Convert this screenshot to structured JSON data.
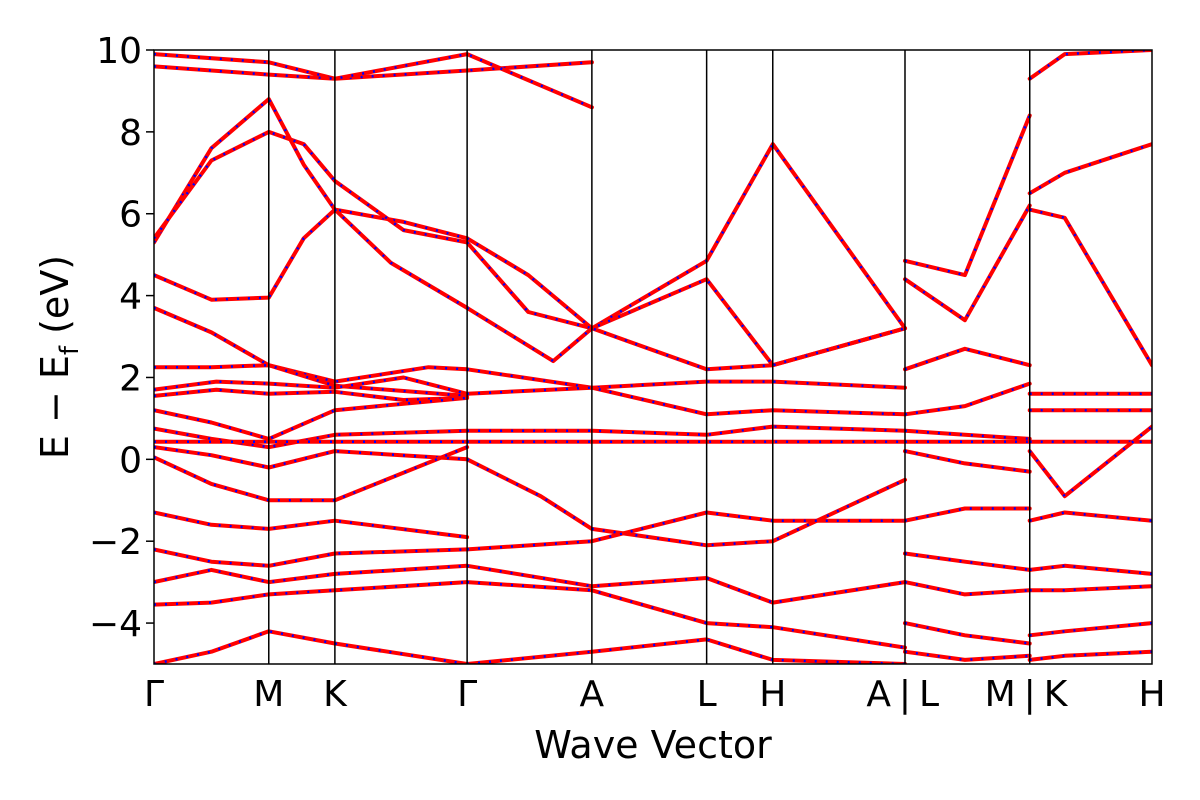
{
  "chart_data": {
    "type": "line",
    "title": "",
    "xlabel": "Wave Vector",
    "ylabel": "E − E",
    "ylabel_subscript": "f",
    "ylabel_unit": " (eV)",
    "ylim": [
      -5,
      10
    ],
    "yticks": [
      10,
      8,
      6,
      4,
      2,
      0,
      -2,
      -4
    ],
    "ytick_labels": [
      "10",
      "8",
      "6",
      "4",
      "2",
      "0",
      "−2",
      "−4"
    ],
    "xlim": [
      0,
      8
    ],
    "kpoints": [
      {
        "label": "Γ",
        "x": 0
      },
      {
        "label": "M",
        "x": 0.92
      },
      {
        "label": "K",
        "x": 1.45
      },
      {
        "label": "Γ",
        "x": 2.51
      },
      {
        "label": "A",
        "x": 3.51
      },
      {
        "label": "L",
        "x": 4.43
      },
      {
        "label": "H",
        "x": 4.96
      },
      {
        "label": "A",
        "x": 6.02
      },
      {
        "label": "L",
        "x": 6.02
      },
      {
        "label": "M",
        "x": 7.02
      },
      {
        "label": "K",
        "x": 7.02
      },
      {
        "label": "H",
        "x": 8.0
      }
    ],
    "xtick_labels": [
      "Γ",
      "M",
      "K",
      "Γ",
      "A",
      "L",
      "H",
      "A",
      "|",
      "L",
      "M",
      "|",
      "K",
      "H"
    ],
    "series_colors": {
      "spin_up": "#0000ff",
      "spin_down": "#ff0000"
    },
    "grid": false,
    "legend": "none",
    "bands": [
      {
        "x": [
          0,
          0.46,
          0.92,
          1.2,
          1.45,
          2.0,
          2.51
        ],
        "y": [
          5.3,
          7.6,
          8.8,
          7.2,
          6.1,
          5.8,
          5.4
        ]
      },
      {
        "x": [
          0,
          0.46,
          0.92,
          1.2,
          1.45,
          2.0,
          2.51
        ],
        "y": [
          5.4,
          7.3,
          8.0,
          7.7,
          6.8,
          5.6,
          5.3
        ]
      },
      {
        "x": [
          0,
          0.46,
          0.92,
          1.2,
          1.45,
          1.9,
          2.51
        ],
        "y": [
          4.5,
          3.9,
          3.95,
          5.4,
          6.1,
          4.8,
          3.7
        ]
      },
      {
        "x": [
          0,
          0.46,
          0.92,
          1.45,
          2.2,
          2.51
        ],
        "y": [
          3.7,
          3.1,
          2.3,
          1.9,
          2.25,
          2.2
        ]
      },
      {
        "x": [
          0,
          0.46,
          0.92,
          1.45,
          2.51
        ],
        "y": [
          2.25,
          2.25,
          2.3,
          1.8,
          1.55
        ]
      },
      {
        "x": [
          0,
          0.5,
          0.92,
          1.45,
          2.0,
          2.51
        ],
        "y": [
          1.7,
          1.9,
          1.85,
          1.75,
          2.0,
          1.6
        ]
      },
      {
        "x": [
          0,
          0.5,
          0.92,
          1.45,
          2.0,
          2.51
        ],
        "y": [
          1.55,
          1.7,
          1.6,
          1.65,
          1.45,
          1.5
        ]
      },
      {
        "x": [
          0,
          0.46,
          0.92,
          1.45,
          2.51
        ],
        "y": [
          1.2,
          0.9,
          0.5,
          1.2,
          1.5
        ]
      },
      {
        "x": [
          0,
          0.46,
          0.92,
          1.45,
          2.51
        ],
        "y": [
          0.75,
          0.5,
          0.3,
          0.6,
          0.7
        ]
      },
      {
        "x": [
          0,
          0.92,
          1.45,
          2.51
        ],
        "y": [
          0.43,
          0.43,
          0.43,
          0.43
        ]
      },
      {
        "x": [
          0,
          0.46,
          0.92,
          1.45,
          2.51
        ],
        "y": [
          0.3,
          0.1,
          -0.2,
          0.2,
          0.0
        ]
      },
      {
        "x": [
          0,
          0.46,
          0.92,
          1.45,
          2.51
        ],
        "y": [
          0.05,
          -0.6,
          -1.0,
          -1.0,
          0.3
        ]
      },
      {
        "x": [
          0,
          0.46,
          0.92,
          1.45,
          2.51
        ],
        "y": [
          -1.3,
          -1.6,
          -1.7,
          -1.5,
          -1.9
        ]
      },
      {
        "x": [
          0,
          0.46,
          0.92,
          1.45,
          2.51
        ],
        "y": [
          -2.2,
          -2.5,
          -2.6,
          -2.3,
          -2.2
        ]
      },
      {
        "x": [
          0,
          0.46,
          0.92,
          1.45,
          2.51
        ],
        "y": [
          -3.0,
          -2.7,
          -3.0,
          -2.8,
          -2.6
        ]
      },
      {
        "x": [
          0,
          0.46,
          0.92,
          1.45,
          2.51
        ],
        "y": [
          -3.55,
          -3.5,
          -3.3,
          -3.2,
          -3.0
        ]
      },
      {
        "x": [
          0,
          0.46,
          0.92,
          1.45,
          2.51
        ],
        "y": [
          -5.0,
          -4.7,
          -4.2,
          -4.5,
          -5.0
        ]
      },
      {
        "x": [
          2.51,
          3.0,
          3.51,
          4.43,
          4.96,
          6.02
        ],
        "y": [
          5.4,
          4.5,
          3.2,
          4.85,
          7.7,
          3.2
        ]
      },
      {
        "x": [
          2.51,
          3.0,
          3.51,
          4.43,
          4.96,
          6.02
        ],
        "y": [
          5.3,
          3.6,
          3.2,
          4.4,
          2.3,
          3.2
        ]
      },
      {
        "x": [
          2.51,
          3.2,
          3.51,
          4.43,
          4.96,
          6.02
        ],
        "y": [
          3.7,
          2.4,
          3.2,
          2.2,
          2.3,
          3.2
        ]
      },
      {
        "x": [
          2.51,
          3.51,
          4.43,
          4.96,
          6.02
        ],
        "y": [
          2.2,
          1.75,
          1.9,
          1.9,
          1.75
        ]
      },
      {
        "x": [
          2.51,
          3.51,
          4.43,
          4.96,
          6.02
        ],
        "y": [
          1.6,
          1.75,
          1.1,
          1.2,
          1.1
        ]
      },
      {
        "x": [
          2.51,
          3.51,
          4.43,
          4.96,
          6.02
        ],
        "y": [
          0.43,
          0.43,
          0.43,
          0.43,
          0.43
        ]
      },
      {
        "x": [
          2.51,
          3.51,
          4.43,
          4.96,
          6.02
        ],
        "y": [
          0.7,
          0.7,
          0.6,
          0.8,
          0.7
        ]
      },
      {
        "x": [
          2.51,
          3.1,
          3.51,
          4.43,
          4.96,
          6.02
        ],
        "y": [
          0.0,
          -0.9,
          -1.7,
          -2.1,
          -2.0,
          -0.5
        ]
      },
      {
        "x": [
          2.51,
          3.51,
          4.43,
          4.96,
          6.02
        ],
        "y": [
          -2.2,
          -2.0,
          -1.3,
          -1.5,
          -1.5
        ]
      },
      {
        "x": [
          2.51,
          3.51,
          4.43,
          4.96,
          6.02
        ],
        "y": [
          -2.6,
          -3.1,
          -2.9,
          -3.5,
          -3.0
        ]
      },
      {
        "x": [
          2.51,
          3.51,
          4.43,
          4.96,
          6.02
        ],
        "y": [
          -3.0,
          -3.2,
          -4.0,
          -4.1,
          -4.6
        ]
      },
      {
        "x": [
          2.51,
          3.51,
          4.43,
          4.96,
          6.02
        ],
        "y": [
          -5.0,
          -4.7,
          -4.4,
          -4.9,
          -5.0
        ]
      },
      {
        "x": [
          6.02,
          6.5,
          7.02
        ],
        "y": [
          4.85,
          4.5,
          8.4
        ]
      },
      {
        "x": [
          6.02,
          6.5,
          7.02
        ],
        "y": [
          4.4,
          3.4,
          6.2
        ]
      },
      {
        "x": [
          6.02,
          6.5,
          7.02
        ],
        "y": [
          2.2,
          2.7,
          2.3
        ]
      },
      {
        "x": [
          6.02,
          6.5,
          7.02
        ],
        "y": [
          1.1,
          1.3,
          1.85
        ]
      },
      {
        "x": [
          6.02,
          6.5,
          7.02
        ],
        "y": [
          0.7,
          0.6,
          0.5
        ]
      },
      {
        "x": [
          6.02,
          6.5,
          7.02
        ],
        "y": [
          0.43,
          0.43,
          0.43
        ]
      },
      {
        "x": [
          6.02,
          6.5,
          7.02
        ],
        "y": [
          0.2,
          -0.1,
          -0.3
        ]
      },
      {
        "x": [
          6.02,
          6.5,
          7.02
        ],
        "y": [
          -1.5,
          -1.2,
          -1.2
        ]
      },
      {
        "x": [
          6.02,
          6.5,
          7.02
        ],
        "y": [
          -2.3,
          -2.5,
          -2.7
        ]
      },
      {
        "x": [
          6.02,
          6.5,
          7.02
        ],
        "y": [
          -3.0,
          -3.3,
          -3.2
        ]
      },
      {
        "x": [
          6.02,
          6.5,
          7.02
        ],
        "y": [
          -4.0,
          -4.3,
          -4.5
        ]
      },
      {
        "x": [
          6.02,
          6.5,
          7.02
        ],
        "y": [
          -4.7,
          -4.9,
          -4.8
        ]
      },
      {
        "x": [
          7.02,
          7.3,
          8.0
        ],
        "y": [
          6.5,
          7.0,
          7.7
        ]
      },
      {
        "x": [
          7.02,
          7.3,
          8.0
        ],
        "y": [
          6.1,
          5.9,
          2.3
        ]
      },
      {
        "x": [
          7.02,
          7.3,
          8.0
        ],
        "y": [
          9.3,
          9.9,
          10.0
        ]
      },
      {
        "x": [
          7.02,
          7.3,
          8.0
        ],
        "y": [
          1.6,
          1.6,
          1.6
        ]
      },
      {
        "x": [
          7.02,
          7.3,
          8.0
        ],
        "y": [
          1.2,
          1.2,
          1.2
        ]
      },
      {
        "x": [
          7.02,
          7.3,
          8.0
        ],
        "y": [
          0.43,
          0.43,
          0.43
        ]
      },
      {
        "x": [
          7.02,
          7.3,
          8.0
        ],
        "y": [
          0.2,
          -0.9,
          0.8
        ]
      },
      {
        "x": [
          7.02,
          7.3,
          8.0
        ],
        "y": [
          -1.5,
          -1.3,
          -1.5
        ]
      },
      {
        "x": [
          7.02,
          7.3,
          8.0
        ],
        "y": [
          -2.7,
          -2.6,
          -2.8
        ]
      },
      {
        "x": [
          7.02,
          7.3,
          8.0
        ],
        "y": [
          -3.2,
          -3.2,
          -3.1
        ]
      },
      {
        "x": [
          7.02,
          7.3,
          8.0
        ],
        "y": [
          -4.3,
          -4.2,
          -4.0
        ]
      },
      {
        "x": [
          7.02,
          7.3,
          8.0
        ],
        "y": [
          -4.9,
          -4.8,
          -4.7
        ]
      },
      {
        "x": [
          0,
          0.92,
          1.45,
          2.51,
          3.51
        ],
        "y": [
          9.9,
          9.7,
          9.3,
          9.5,
          9.7
        ]
      },
      {
        "x": [
          0,
          0.92,
          1.45,
          2.51,
          3.51
        ],
        "y": [
          9.6,
          9.4,
          9.3,
          9.9,
          8.6
        ]
      }
    ]
  }
}
